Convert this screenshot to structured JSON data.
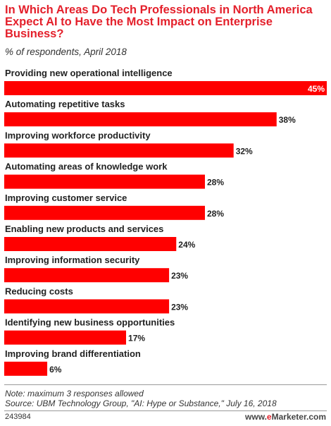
{
  "title": "In Which Areas Do Tech Professionals in North America Expect AI to Have the Most Impact on Enterprise Business?",
  "subtitle": "% of respondents, April 2018",
  "note": "Note: maximum 3 responses allowed",
  "source": "Source: UBM Technology Group, \"AI: Hype or Substance,\" July 16, 2018",
  "chart_id": "243984",
  "brand": {
    "prefix": "www.",
    "e": "e",
    "name": "Marketer",
    "suffix": ".com"
  },
  "colors": {
    "bar": "#ff0000",
    "title": "#e4202b",
    "text": "#222222"
  },
  "chart_data": {
    "type": "bar",
    "orientation": "horizontal",
    "categories": [
      "Providing new operational intelligence",
      "Automating repetitive tasks",
      "Improving workforce productivity",
      "Automating areas of knowledge work",
      "Improving customer service",
      "Enabling new products and services",
      "Improving information security",
      "Reducing costs",
      "Identifying new business opportunities",
      "Improving brand differentiation"
    ],
    "values": [
      45,
      38,
      32,
      28,
      28,
      24,
      23,
      23,
      17,
      6
    ],
    "labels": [
      "45%",
      "38%",
      "32%",
      "28%",
      "28%",
      "24%",
      "23%",
      "23%",
      "17%",
      "6%"
    ],
    "xlim": [
      0,
      45
    ],
    "grid": false,
    "legend": "none"
  }
}
